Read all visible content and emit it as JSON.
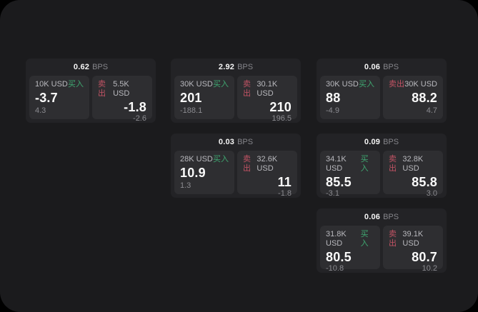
{
  "labels": {
    "unit": "BPS",
    "buy": "买入",
    "sell": "卖出"
  },
  "colors": {
    "background": "#000000",
    "surface": "#1b1b1d",
    "card": "#232326",
    "tile": "#2e2e31",
    "buy_green": "#3fa871",
    "sell_red": "#c25364",
    "value_white": "#fafafa",
    "muted_gray": "#8b8b90"
  },
  "cards": [
    {
      "bps": "0.62",
      "grid": {
        "row": 0,
        "col": 0
      },
      "buy": {
        "amount": "10K USD",
        "price": "-3.7",
        "change": "4.3"
      },
      "sell": {
        "amount": "5.5K USD",
        "price": "-1.8",
        "change": "-2.6"
      }
    },
    {
      "bps": "2.92",
      "grid": {
        "row": 0,
        "col": 1
      },
      "buy": {
        "amount": "30K USD",
        "price": "201",
        "change": "-188.1"
      },
      "sell": {
        "amount": "30.1K USD",
        "price": "210",
        "change": "196.5"
      }
    },
    {
      "bps": "0.06",
      "grid": {
        "row": 0,
        "col": 2
      },
      "buy": {
        "amount": "30K USD",
        "price": "88",
        "change": "-4.9"
      },
      "sell": {
        "amount": "30K USD",
        "price": "88.2",
        "change": "4.7"
      }
    },
    {
      "bps": "0.03",
      "grid": {
        "row": 1,
        "col": 1
      },
      "buy": {
        "amount": "28K USD",
        "price": "10.9",
        "change": "1.3"
      },
      "sell": {
        "amount": "32.6K USD",
        "price": "11",
        "change": "-1.8"
      }
    },
    {
      "bps": "0.09",
      "grid": {
        "row": 1,
        "col": 2
      },
      "buy": {
        "amount": "34.1K USD",
        "price": "85.5",
        "change": "-3.1"
      },
      "sell": {
        "amount": "32.8K USD",
        "price": "85.8",
        "change": "3.0"
      }
    },
    {
      "bps": "0.06",
      "grid": {
        "row": 2,
        "col": 2
      },
      "buy": {
        "amount": "31.8K USD",
        "price": "80.5",
        "change": "-10.8"
      },
      "sell": {
        "amount": "39.1K USD",
        "price": "80.7",
        "change": "10.2"
      }
    }
  ]
}
